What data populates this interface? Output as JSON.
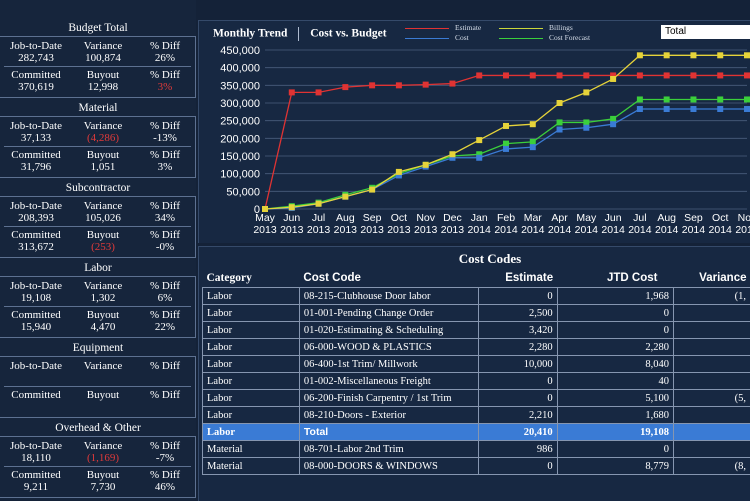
{
  "kpis": [
    {
      "title": "Budget Total",
      "r1": [
        "Job-to-Date",
        "Variance",
        "% Diff"
      ],
      "v1": [
        "282,743",
        "100,874",
        "26%"
      ],
      "r2": [
        "Committed",
        "Buyout",
        "% Diff"
      ],
      "v2": [
        "370,619",
        "12,998",
        "3%"
      ],
      "neg": []
    },
    {
      "title": "Material",
      "r1": [
        "Job-to-Date",
        "Variance",
        "% Diff"
      ],
      "v1": [
        "37,133",
        "(4,286)",
        "-13%"
      ],
      "r2": [
        "Committed",
        "Buyout",
        "% Diff"
      ],
      "v2": [
        "31,796",
        "1,051",
        "3%"
      ],
      "neg": [
        "v1.1"
      ]
    },
    {
      "title": "Subcontractor",
      "r1": [
        "Job-to-Date",
        "Variance",
        "% Diff"
      ],
      "v1": [
        "208,393",
        "105,026",
        "34%"
      ],
      "r2": [
        "Committed",
        "Buyout",
        "% Diff"
      ],
      "v2": [
        "313,672",
        "(253)",
        "-0%"
      ],
      "neg": [
        "v2.1"
      ]
    },
    {
      "title": "Labor",
      "r1": [
        "Job-to-Date",
        "Variance",
        "% Diff"
      ],
      "v1": [
        "19,108",
        "1,302",
        "6%"
      ],
      "r2": [
        "Committed",
        "Buyout",
        "% Diff"
      ],
      "v2": [
        "15,940",
        "4,470",
        "22%"
      ],
      "neg": []
    },
    {
      "title": "Equipment",
      "r1": [
        "Job-to-Date",
        "Variance",
        "% Diff"
      ],
      "v1": [
        "",
        "",
        ""
      ],
      "r2": [
        "Committed",
        "Buyout",
        "% Diff"
      ],
      "v2": [
        "",
        "",
        ""
      ],
      "neg": []
    },
    {
      "title": "Overhead & Other",
      "r1": [
        "Job-to-Date",
        "Variance",
        "% Diff"
      ],
      "v1": [
        "18,110",
        "(1,169)",
        "-7%"
      ],
      "r2": [
        "Committed",
        "Buyout",
        "% Diff"
      ],
      "v2": [
        "9,211",
        "7,730",
        "46%"
      ],
      "neg": [
        "v1.1"
      ]
    }
  ],
  "chart_header": {
    "title": "Monthly Trend",
    "subtitle": "Cost vs. Budget",
    "legend": {
      "estimate": "Estimate",
      "cost": "Cost",
      "billings": "Billings",
      "cost_forecast": "Cost Forecast"
    },
    "filter_value": "Total"
  },
  "chart_data": {
    "type": "line",
    "x": [
      "May 2013",
      "Jun 2013",
      "Jul 2013",
      "Aug 2013",
      "Sep 2013",
      "Oct 2013",
      "Nov 2013",
      "Dec 2013",
      "Jan 2014",
      "Feb 2014",
      "Mar 2014",
      "Apr 2014",
      "May 2014",
      "Jun 2014",
      "Jul 2014",
      "Aug 2014",
      "Sep 2014",
      "Oct 2014",
      "Nov 2014"
    ],
    "x_months": [
      "May",
      "Jun",
      "Jul",
      "Aug",
      "Sep",
      "Oct",
      "Nov",
      "Dec",
      "Jan",
      "Feb",
      "Mar",
      "Apr",
      "May",
      "Jun",
      "Jul",
      "Aug",
      "Sep",
      "Oct",
      "Nov"
    ],
    "x_years": [
      "2013",
      "2013",
      "2013",
      "2013",
      "2013",
      "2013",
      "2013",
      "2013",
      "2014",
      "2014",
      "2014",
      "2014",
      "2014",
      "2014",
      "2014",
      "2014",
      "2014",
      "2014",
      "2014"
    ],
    "ylim": [
      0,
      450000
    ],
    "yticks": [
      "0",
      "50,000",
      "100,000",
      "150,000",
      "200,000",
      "250,000",
      "300,000",
      "350,000",
      "400,000",
      "450,000"
    ],
    "series": [
      {
        "name": "Estimate",
        "color": "#e03333",
        "values": [
          0,
          330000,
          330000,
          345000,
          350000,
          350000,
          352000,
          355000,
          378000,
          378000,
          378000,
          378000,
          378000,
          378000,
          378000,
          378000,
          378000,
          378000,
          378000
        ]
      },
      {
        "name": "Cost",
        "color": "#3a7bd5",
        "values": [
          0,
          3000,
          15000,
          35000,
          55000,
          95000,
          120000,
          145000,
          145000,
          170000,
          175000,
          225000,
          230000,
          240000,
          283000,
          283000,
          283000,
          283000,
          283000
        ]
      },
      {
        "name": "Billings",
        "color": "#e6d33a",
        "values": [
          0,
          5000,
          15000,
          35000,
          55000,
          105000,
          125000,
          155000,
          195000,
          235000,
          240000,
          300000,
          330000,
          368000,
          435000,
          435000,
          435000,
          435000,
          435000
        ]
      },
      {
        "name": "Cost Forecast",
        "color": "#3bcf3b",
        "values": [
          0,
          8000,
          18000,
          40000,
          60000,
          100000,
          125000,
          150000,
          155000,
          185000,
          190000,
          245000,
          245000,
          255000,
          310000,
          310000,
          310000,
          310000,
          310000
        ]
      }
    ],
    "series_markers": {
      "Estimate": "#e03333",
      "Cost": "#3a7bd5",
      "Billings": "#e6d33a",
      "Cost Forecast": "#3bcf3b"
    }
  },
  "cost_codes": {
    "title": "Cost Codes",
    "columns": [
      "Category",
      "Cost Code",
      "Estimate",
      "JTD Cost",
      "Variance"
    ],
    "rows": [
      {
        "cat": "Labor",
        "code": "08-215-Clubhouse Door labor",
        "est": "0",
        "jtd": "1,968",
        "var": "(1,"
      },
      {
        "cat": "Labor",
        "code": "01-001-Pending Change Order",
        "est": "2,500",
        "jtd": "0",
        "var": ""
      },
      {
        "cat": "Labor",
        "code": "01-020-Estimating & Scheduling",
        "est": "3,420",
        "jtd": "0",
        "var": ""
      },
      {
        "cat": "Labor",
        "code": "06-000-WOOD & PLASTICS",
        "est": "2,280",
        "jtd": "2,280",
        "var": ""
      },
      {
        "cat": "Labor",
        "code": "06-400-1st Trim/ Millwork",
        "est": "10,000",
        "jtd": "8,040",
        "var": ""
      },
      {
        "cat": "Labor",
        "code": "01-002-Miscellaneous Freight",
        "est": "0",
        "jtd": "40",
        "var": ""
      },
      {
        "cat": "Labor",
        "code": "06-200-Finish Carpentry / 1st Trim",
        "est": "0",
        "jtd": "5,100",
        "var": "(5,"
      },
      {
        "cat": "Labor",
        "code": "08-210-Doors - Exterior",
        "est": "2,210",
        "jtd": "1,680",
        "var": ""
      },
      {
        "cat": "Labor",
        "code": "Total",
        "est": "20,410",
        "jtd": "19,108",
        "var": "",
        "total": true
      },
      {
        "cat": "Material",
        "code": "08-701-Labor 2nd Trim",
        "est": "986",
        "jtd": "0",
        "var": ""
      },
      {
        "cat": "Material",
        "code": "08-000-DOORS & WINDOWS",
        "est": "0",
        "jtd": "8,779",
        "var": "(8,"
      }
    ]
  }
}
